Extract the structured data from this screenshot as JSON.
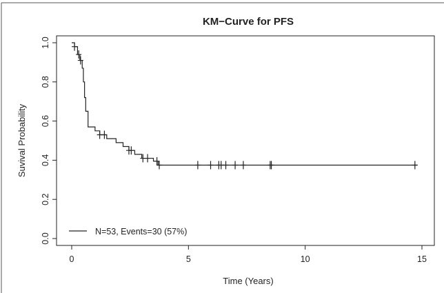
{
  "chart_data": {
    "type": "line",
    "title": "KM−Curve for PFS",
    "xlabel": "Time (Years)",
    "ylabel": "Suvival Probability",
    "xlim": [
      0,
      15
    ],
    "ylim": [
      0,
      1
    ],
    "x_ticks": [
      "0",
      "5",
      "10",
      "15"
    ],
    "y_ticks": [
      "0.0",
      "0.2",
      "0.4",
      "0.6",
      "0.8",
      "1.0"
    ],
    "grid": false,
    "legend_position": "bottom-left",
    "series": [
      {
        "name": "N=53, Events=30 (57%)",
        "color": "#222222",
        "step_points": [
          [
            0,
            1.0
          ],
          [
            0.12,
            0.98
          ],
          [
            0.25,
            0.94
          ],
          [
            0.35,
            0.91
          ],
          [
            0.45,
            0.87
          ],
          [
            0.5,
            0.8
          ],
          [
            0.55,
            0.72
          ],
          [
            0.6,
            0.65
          ],
          [
            0.7,
            0.57
          ],
          [
            1.0,
            0.55
          ],
          [
            1.2,
            0.53
          ],
          [
            1.5,
            0.51
          ],
          [
            1.9,
            0.49
          ],
          [
            2.2,
            0.47
          ],
          [
            2.45,
            0.45
          ],
          [
            2.7,
            0.43
          ],
          [
            3.0,
            0.41
          ],
          [
            3.5,
            0.395
          ],
          [
            3.7,
            0.375
          ],
          [
            14.8,
            0.375
          ]
        ],
        "censor_x": [
          0.12,
          0.3,
          0.38,
          1.2,
          1.4,
          2.45,
          2.55,
          3.05,
          3.25,
          3.65,
          3.75,
          5.4,
          5.95,
          6.3,
          6.4,
          6.6,
          7.0,
          7.35,
          8.5,
          8.55,
          14.7
        ]
      }
    ]
  }
}
